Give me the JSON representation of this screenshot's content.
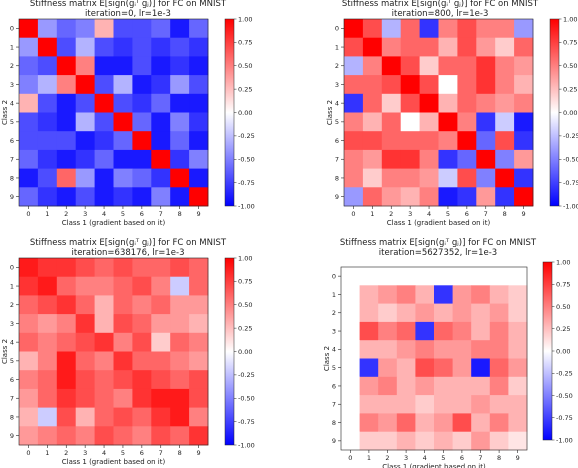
{
  "chart_data": [
    {
      "type": "heatmap",
      "title": "Stiffness matrix E[sign(gᵢᵀ gⱼ)] for FC on MNIST",
      "subtitle": "iteration=0, lr=1e-3",
      "xlabel": "Class 1 (gradient based on it)",
      "ylabel": "Class 2",
      "x_ticks": [
        "0",
        "1",
        "2",
        "3",
        "4",
        "5",
        "6",
        "7",
        "8",
        "9"
      ],
      "y_ticks": [
        "0",
        "1",
        "2",
        "3",
        "4",
        "5",
        "6",
        "7",
        "8",
        "9"
      ],
      "colorbar_ticks": [
        "1.00",
        "0.75",
        "0.50",
        "0.25",
        "0.00",
        "-0.25",
        "-0.50",
        "-0.75",
        "-1.00"
      ],
      "colorbar_values": [
        1.0,
        0.75,
        0.5,
        0.25,
        0.0,
        -0.25,
        -0.5,
        -0.75,
        -1.0
      ],
      "vmin": -1,
      "vmax": 1,
      "colormap": "bwr",
      "matrix": [
        [
          1.0,
          -0.4,
          -0.6,
          -0.5,
          0.3,
          -0.7,
          -0.7,
          -0.6,
          -0.9,
          -0.6
        ],
        [
          -0.4,
          1.0,
          -0.7,
          -0.3,
          -0.7,
          -0.8,
          -0.7,
          -0.8,
          -0.7,
          -0.8
        ],
        [
          -0.6,
          -0.7,
          1.0,
          0.5,
          -0.9,
          -0.9,
          -0.7,
          -0.9,
          -0.8,
          -0.9
        ],
        [
          -0.5,
          -0.3,
          0.5,
          1.0,
          -0.7,
          -0.3,
          -0.9,
          -0.8,
          -0.4,
          -0.7
        ],
        [
          0.3,
          -0.7,
          -0.9,
          -0.7,
          1.0,
          -0.7,
          -0.8,
          -0.6,
          -0.9,
          -0.9
        ],
        [
          -0.7,
          -0.8,
          -0.9,
          -0.3,
          -0.7,
          1.0,
          -0.6,
          -0.9,
          -0.5,
          -0.8
        ],
        [
          -0.7,
          -0.7,
          -0.7,
          -0.9,
          -0.8,
          -0.6,
          1.0,
          -0.9,
          -0.6,
          -0.9
        ],
        [
          -0.6,
          -0.8,
          -0.9,
          -0.8,
          -0.6,
          -0.9,
          -0.9,
          1.0,
          -0.8,
          -0.5
        ],
        [
          -0.9,
          -0.7,
          0.6,
          -0.4,
          -0.9,
          -0.5,
          -0.6,
          -0.8,
          1.0,
          -0.9
        ],
        [
          -0.6,
          -0.8,
          -0.9,
          -0.7,
          -0.9,
          -0.8,
          -0.9,
          -0.5,
          -0.9,
          1.0
        ]
      ]
    },
    {
      "type": "heatmap",
      "title": "Stiffness matrix E[sign(gᵢᵀ gⱼ)] for FC on MNIST",
      "subtitle": "iteration=800, lr=1e-3",
      "xlabel": "Class 1 (gradient based on it)",
      "ylabel": "Class 2",
      "x_ticks": [
        "0",
        "1",
        "2",
        "3",
        "4",
        "5",
        "6",
        "7",
        "8",
        "9"
      ],
      "y_ticks": [
        "0",
        "1",
        "2",
        "3",
        "4",
        "5",
        "6",
        "7",
        "8",
        "9"
      ],
      "colorbar_ticks": [
        "1.00",
        "0.75",
        "0.50",
        "0.25",
        "0.00",
        "-0.25",
        "-0.50",
        "-0.75",
        "-1.00"
      ],
      "colorbar_values": [
        1.0,
        0.75,
        0.5,
        0.25,
        0.0,
        -0.25,
        -0.5,
        -0.75,
        -1.0
      ],
      "vmin": -1,
      "vmax": 1,
      "colormap": "bwr",
      "matrix": [
        [
          1.0,
          0.7,
          -0.3,
          0.6,
          -0.8,
          0.5,
          0.7,
          0.5,
          0.5,
          -0.4
        ],
        [
          0.7,
          1.0,
          0.5,
          0.6,
          0.6,
          0.3,
          0.7,
          0.4,
          0.2,
          0.6
        ],
        [
          -0.3,
          0.5,
          1.0,
          0.7,
          0.2,
          0.6,
          0.6,
          0.8,
          0.5,
          0.4
        ],
        [
          0.6,
          0.6,
          0.7,
          1.0,
          0.7,
          0.0,
          0.6,
          0.8,
          0.5,
          0.3
        ],
        [
          -0.8,
          0.6,
          0.2,
          0.7,
          1.0,
          0.3,
          0.6,
          0.5,
          0.4,
          0.5
        ],
        [
          0.5,
          0.3,
          0.6,
          0.0,
          0.3,
          1.0,
          0.5,
          -0.8,
          -0.2,
          -0.9
        ],
        [
          0.7,
          0.7,
          0.6,
          0.6,
          0.6,
          0.5,
          1.0,
          -0.6,
          0.7,
          -0.8
        ],
        [
          0.5,
          0.4,
          0.8,
          0.8,
          0.5,
          -0.8,
          -0.6,
          1.0,
          -0.5,
          0.4
        ],
        [
          0.5,
          0.2,
          0.5,
          0.5,
          0.4,
          -0.2,
          0.7,
          -0.5,
          1.0,
          -0.8
        ],
        [
          -0.4,
          0.6,
          0.4,
          0.3,
          0.5,
          -0.9,
          -0.8,
          0.4,
          -0.8,
          1.0
        ]
      ]
    },
    {
      "type": "heatmap",
      "title": "Stiffness matrix E[sign(gᵢᵀ gⱼ)] for FC on MNIST",
      "subtitle": "iteration=638176, lr=1e-3",
      "xlabel": "Class 1 (gradient based on it)",
      "ylabel": "Class 2",
      "x_ticks": [
        "0",
        "1",
        "2",
        "3",
        "4",
        "5",
        "6",
        "7",
        "8",
        "9"
      ],
      "y_ticks": [
        "0",
        "1",
        "2",
        "3",
        "4",
        "5",
        "6",
        "7",
        "8",
        "9"
      ],
      "colorbar_ticks": [
        "1.00",
        "0.75",
        "0.50",
        "0.25",
        "0.00",
        "-0.25",
        "-0.50",
        "-0.75",
        "-1.00"
      ],
      "colorbar_values": [
        1.0,
        0.75,
        0.5,
        0.25,
        0.0,
        -0.25,
        -0.5,
        -0.75,
        -1.0
      ],
      "vmin": -1,
      "vmax": 1,
      "colormap": "bwr",
      "matrix": [
        [
          0.9,
          0.8,
          0.8,
          0.7,
          0.6,
          0.7,
          0.6,
          0.6,
          0.7,
          0.6
        ],
        [
          0.8,
          0.9,
          0.6,
          0.5,
          0.5,
          0.6,
          0.7,
          0.5,
          -0.2,
          0.6
        ],
        [
          0.6,
          0.7,
          0.8,
          0.6,
          0.3,
          0.6,
          0.5,
          0.6,
          0.4,
          0.4
        ],
        [
          0.5,
          0.4,
          0.5,
          0.8,
          0.3,
          0.7,
          0.6,
          0.4,
          0.4,
          0.3
        ],
        [
          0.6,
          0.5,
          0.6,
          0.7,
          0.8,
          0.5,
          0.7,
          0.2,
          0.6,
          0.5
        ],
        [
          0.3,
          0.5,
          0.9,
          0.6,
          0.5,
          0.8,
          0.6,
          0.6,
          0.5,
          0.4
        ],
        [
          0.5,
          0.6,
          0.9,
          0.7,
          0.6,
          0.7,
          0.8,
          0.7,
          0.6,
          0.7
        ],
        [
          0.4,
          0.6,
          0.8,
          0.7,
          0.6,
          0.5,
          0.8,
          0.9,
          0.9,
          0.7
        ],
        [
          0.3,
          -0.2,
          0.7,
          0.3,
          0.6,
          0.7,
          0.6,
          0.8,
          0.9,
          0.5
        ],
        [
          0.4,
          0.5,
          0.6,
          0.5,
          0.7,
          0.6,
          0.5,
          0.7,
          0.6,
          0.8
        ]
      ]
    },
    {
      "type": "heatmap",
      "title": "Stiffness matrix E[sign(gᵢᵀ gⱼ)] for FC on MNIST",
      "subtitle": "iteration=5627352, lr=1e-3",
      "xlabel": "Class 1 (gradient based on it)",
      "ylabel": "Class 2",
      "x_ticks": [
        "0",
        "1",
        "2",
        "3",
        "4",
        "5",
        "6",
        "7",
        "8",
        "9"
      ],
      "y_ticks": [
        "0",
        "1",
        "2",
        "3",
        "4",
        "5",
        "6",
        "7",
        "8",
        "9"
      ],
      "colorbar_ticks": [
        "1.00",
        "0.75",
        "0.50",
        "0.25",
        "0.00",
        "-0.25",
        "-0.50",
        "-0.75",
        "-1.00"
      ],
      "colorbar_values": [
        1.0,
        0.75,
        0.5,
        0.25,
        0.0,
        -0.25,
        -0.5,
        -0.75,
        -1.0
      ],
      "vmin": -1,
      "vmax": 1,
      "colormap": "bwr",
      "matrix": [
        [
          0.0,
          0.0,
          0.0,
          0.0,
          0.0,
          0.0,
          0.0,
          0.0,
          0.0,
          0.0
        ],
        [
          0.0,
          0.3,
          0.4,
          0.5,
          0.3,
          -0.8,
          0.4,
          0.5,
          0.3,
          0.2
        ],
        [
          0.0,
          0.3,
          0.2,
          0.3,
          0.4,
          0.3,
          0.4,
          0.3,
          0.4,
          0.2
        ],
        [
          0.0,
          0.7,
          0.5,
          0.6,
          -0.8,
          0.6,
          0.5,
          0.3,
          0.5,
          0.3
        ],
        [
          0.0,
          0.3,
          0.3,
          0.4,
          0.5,
          0.4,
          0.4,
          0.5,
          0.5,
          0.3
        ],
        [
          0.0,
          -0.8,
          0.4,
          0.3,
          0.7,
          0.6,
          0.4,
          -0.9,
          0.6,
          0.4
        ],
        [
          0.0,
          0.4,
          0.5,
          0.3,
          0.4,
          0.3,
          0.3,
          0.3,
          0.5,
          0.2
        ],
        [
          0.0,
          0.3,
          0.3,
          0.3,
          0.2,
          0.3,
          0.3,
          0.4,
          0.3,
          0.3
        ],
        [
          0.0,
          0.5,
          0.4,
          0.6,
          0.3,
          0.4,
          0.7,
          0.3,
          0.5,
          0.3
        ],
        [
          0.0,
          0.2,
          0.2,
          0.3,
          0.2,
          0.3,
          0.2,
          0.4,
          0.2,
          0.1
        ]
      ]
    }
  ]
}
